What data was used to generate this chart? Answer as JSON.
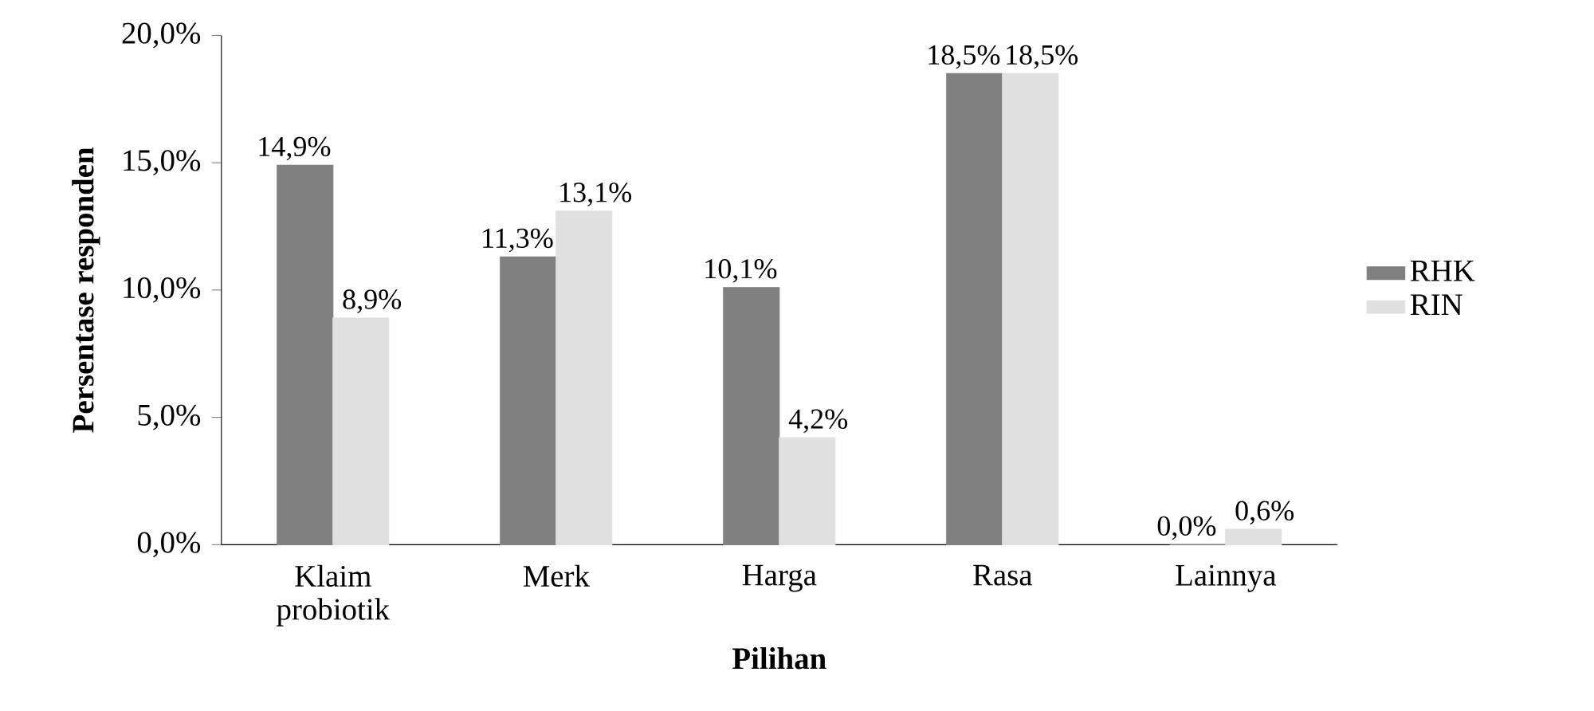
{
  "chart_data": {
    "type": "bar",
    "xlabel": "Pilihan",
    "ylabel": "Persentase responden",
    "categories": [
      "Klaim probiotik",
      "Merk",
      "Harga",
      "Rasa",
      "Lainnya"
    ],
    "series": [
      {
        "name": "RHK",
        "color": "#808080",
        "values": [
          14.9,
          11.3,
          10.1,
          18.5,
          0.0
        ],
        "value_labels": [
          "14,9%",
          "11,3%",
          "10,1%",
          "18,5%",
          "0,0%"
        ]
      },
      {
        "name": "RIN",
        "color": "#e0e0e0",
        "values": [
          8.9,
          13.1,
          4.2,
          18.5,
          0.6
        ],
        "value_labels": [
          "8,9%",
          "13,1%",
          "4,2%",
          "18,5%",
          "0,6%"
        ]
      }
    ],
    "ylim": [
      0,
      20
    ],
    "yticks": [
      {
        "value": 0,
        "label": "0,0%"
      },
      {
        "value": 5,
        "label": "5,0%"
      },
      {
        "value": 10,
        "label": "10,0%"
      },
      {
        "value": 15,
        "label": "15,0%"
      },
      {
        "value": 20,
        "label": "20,0%"
      }
    ],
    "grid": false,
    "legend": "right"
  }
}
